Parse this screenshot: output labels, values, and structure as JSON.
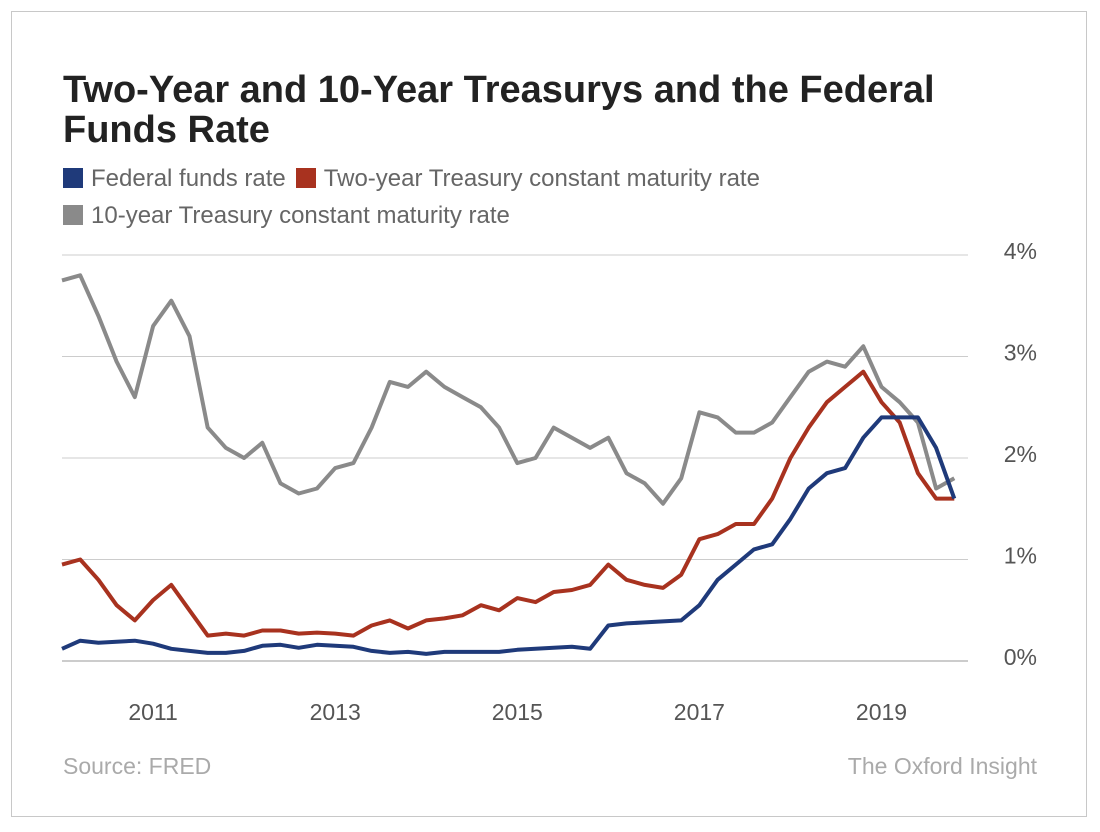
{
  "chart_data": {
    "type": "line",
    "title": "Two-Year and 10-Year Treasurys and the Federal Funds Rate",
    "source": "Source: FRED",
    "credit": "The Oxford Insight",
    "x": [
      2010.0,
      2010.2,
      2010.4,
      2010.6,
      2010.8,
      2011.0,
      2011.2,
      2011.4,
      2011.6,
      2011.8,
      2012.0,
      2012.2,
      2012.4,
      2012.6,
      2012.8,
      2013.0,
      2013.2,
      2013.4,
      2013.6,
      2013.8,
      2014.0,
      2014.2,
      2014.4,
      2014.6,
      2014.8,
      2015.0,
      2015.2,
      2015.4,
      2015.6,
      2015.8,
      2016.0,
      2016.2,
      2016.4,
      2016.6,
      2016.8,
      2017.0,
      2017.2,
      2017.4,
      2017.6,
      2017.8,
      2018.0,
      2018.2,
      2018.4,
      2018.6,
      2018.8,
      2019.0,
      2019.2,
      2019.4,
      2019.6,
      2019.8
    ],
    "series": [
      {
        "name": "Federal funds rate",
        "color": "#1f3a7a",
        "values": [
          0.12,
          0.2,
          0.18,
          0.19,
          0.2,
          0.17,
          0.12,
          0.1,
          0.08,
          0.08,
          0.1,
          0.15,
          0.16,
          0.13,
          0.16,
          0.15,
          0.14,
          0.1,
          0.08,
          0.09,
          0.07,
          0.09,
          0.09,
          0.09,
          0.09,
          0.11,
          0.12,
          0.13,
          0.14,
          0.12,
          0.35,
          0.37,
          0.38,
          0.39,
          0.4,
          0.55,
          0.8,
          0.95,
          1.1,
          1.15,
          1.4,
          1.7,
          1.85,
          1.9,
          2.2,
          2.4,
          2.4,
          2.4,
          2.1,
          1.6
        ]
      },
      {
        "name": "Two-year Treasury constant maturity rate",
        "color": "#a8321f",
        "values": [
          0.95,
          1.0,
          0.8,
          0.55,
          0.4,
          0.6,
          0.75,
          0.5,
          0.25,
          0.27,
          0.25,
          0.3,
          0.3,
          0.27,
          0.28,
          0.27,
          0.25,
          0.35,
          0.4,
          0.32,
          0.4,
          0.42,
          0.45,
          0.55,
          0.5,
          0.62,
          0.58,
          0.68,
          0.7,
          0.75,
          0.95,
          0.8,
          0.75,
          0.72,
          0.85,
          1.2,
          1.25,
          1.35,
          1.35,
          1.6,
          2.0,
          2.3,
          2.55,
          2.7,
          2.85,
          2.55,
          2.35,
          1.85,
          1.6,
          1.6
        ]
      },
      {
        "name": "10-year Treasury constant maturity rate",
        "color": "#8a8a8a",
        "values": [
          3.75,
          3.8,
          3.4,
          2.95,
          2.6,
          3.3,
          3.55,
          3.2,
          2.3,
          2.1,
          2.0,
          2.15,
          1.75,
          1.65,
          1.7,
          1.9,
          1.95,
          2.3,
          2.75,
          2.7,
          2.85,
          2.7,
          2.6,
          2.5,
          2.3,
          1.95,
          2.0,
          2.3,
          2.2,
          2.1,
          2.2,
          1.85,
          1.75,
          1.55,
          1.8,
          2.45,
          2.4,
          2.25,
          2.25,
          2.35,
          2.6,
          2.85,
          2.95,
          2.9,
          3.1,
          2.7,
          2.55,
          2.35,
          1.7,
          1.8
        ]
      }
    ],
    "xlim": [
      2010,
      2019.95
    ],
    "xticks": [
      2011,
      2013,
      2015,
      2017,
      2019
    ],
    "ylim": [
      0,
      4
    ],
    "yticks": [
      {
        "value": 0,
        "label": "0%"
      },
      {
        "value": 1,
        "label": "1%"
      },
      {
        "value": 2,
        "label": "2%"
      },
      {
        "value": 3,
        "label": "3%"
      },
      {
        "value": 4,
        "label": "4%"
      }
    ],
    "grid": true
  }
}
